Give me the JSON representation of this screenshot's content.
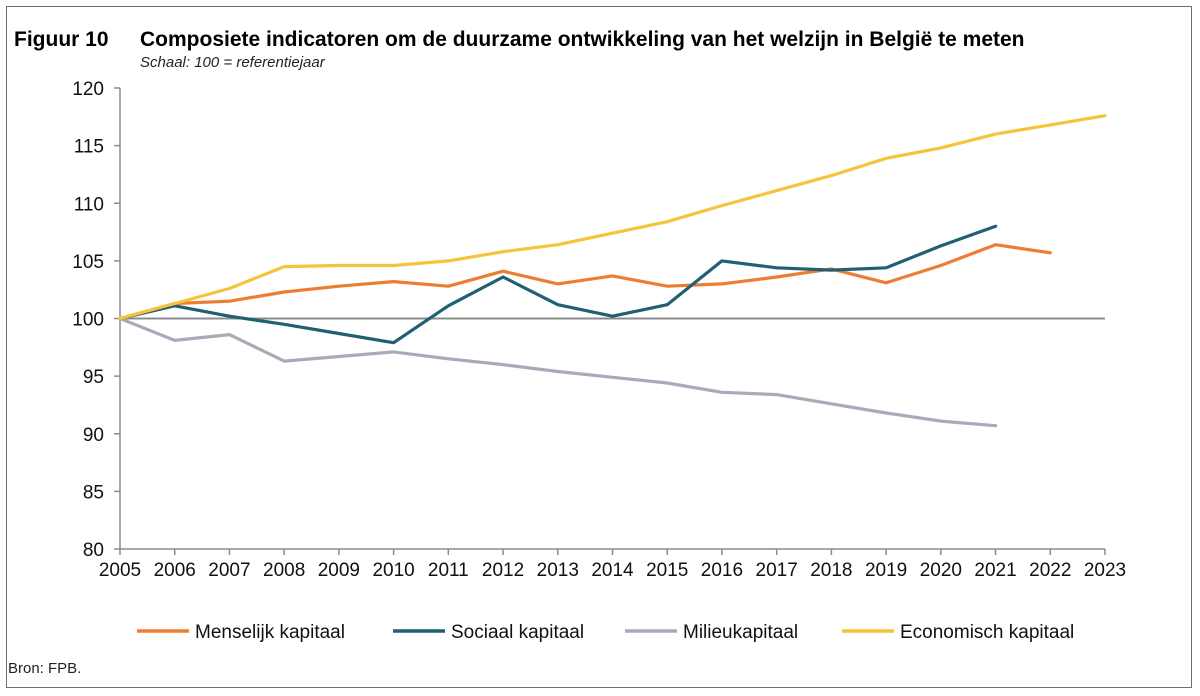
{
  "figure": {
    "label": "Figuur 10",
    "title": "Composiete indicatoren om de duurzame ontwikkeling van het welzijn in België te meten",
    "subtitle": "Schaal: 100 = referentiejaar",
    "source": "Bron: FPB."
  },
  "chart_data": {
    "type": "line",
    "title": "Composiete indicatoren om de duurzame ontwikkeling van het welzijn in België te meten",
    "subtitle": "Schaal: 100 = referentiejaar",
    "xlabel": "",
    "ylabel": "",
    "x": [
      "2005",
      "2006",
      "2007",
      "2008",
      "2009",
      "2010",
      "2011",
      "2012",
      "2013",
      "2014",
      "2015",
      "2016",
      "2017",
      "2018",
      "2019",
      "2020",
      "2021",
      "2022",
      "2023"
    ],
    "ylim": [
      80,
      120
    ],
    "yticks": [
      80,
      85,
      90,
      95,
      100,
      105,
      110,
      115,
      120
    ],
    "reference_line": 100,
    "legend_position": "bottom",
    "series": [
      {
        "name": "Menselijk kapitaal",
        "color": "#ED7D31",
        "values": [
          100,
          101.3,
          101.5,
          102.3,
          102.8,
          103.2,
          102.8,
          104.1,
          103.0,
          103.7,
          102.8,
          103.0,
          103.6,
          104.3,
          103.1,
          104.6,
          106.4,
          105.7,
          null
        ]
      },
      {
        "name": "Sociaal kapitaal",
        "color": "#215F72",
        "values": [
          100,
          101.1,
          100.2,
          99.5,
          98.7,
          97.9,
          101.1,
          103.6,
          101.2,
          100.2,
          101.2,
          105.0,
          104.4,
          104.2,
          104.4,
          106.3,
          108.0,
          null,
          null
        ]
      },
      {
        "name": "Milieukapitaal",
        "color": "#A5ACB8",
        "values": [
          100,
          98.1,
          98.6,
          96.3,
          96.7,
          97.1,
          96.5,
          96.0,
          95.4,
          94.9,
          94.4,
          93.6,
          93.4,
          92.6,
          91.8,
          91.1,
          90.7,
          null,
          null
        ]
      },
      {
        "name": "Economisch kapitaal",
        "color": "#F6C43A",
        "values": [
          100,
          101.3,
          102.6,
          104.5,
          104.6,
          104.6,
          105.0,
          105.8,
          106.4,
          107.4,
          108.4,
          109.8,
          111.1,
          112.4,
          113.9,
          114.8,
          116.0,
          116.8,
          117.6
        ]
      }
    ]
  }
}
